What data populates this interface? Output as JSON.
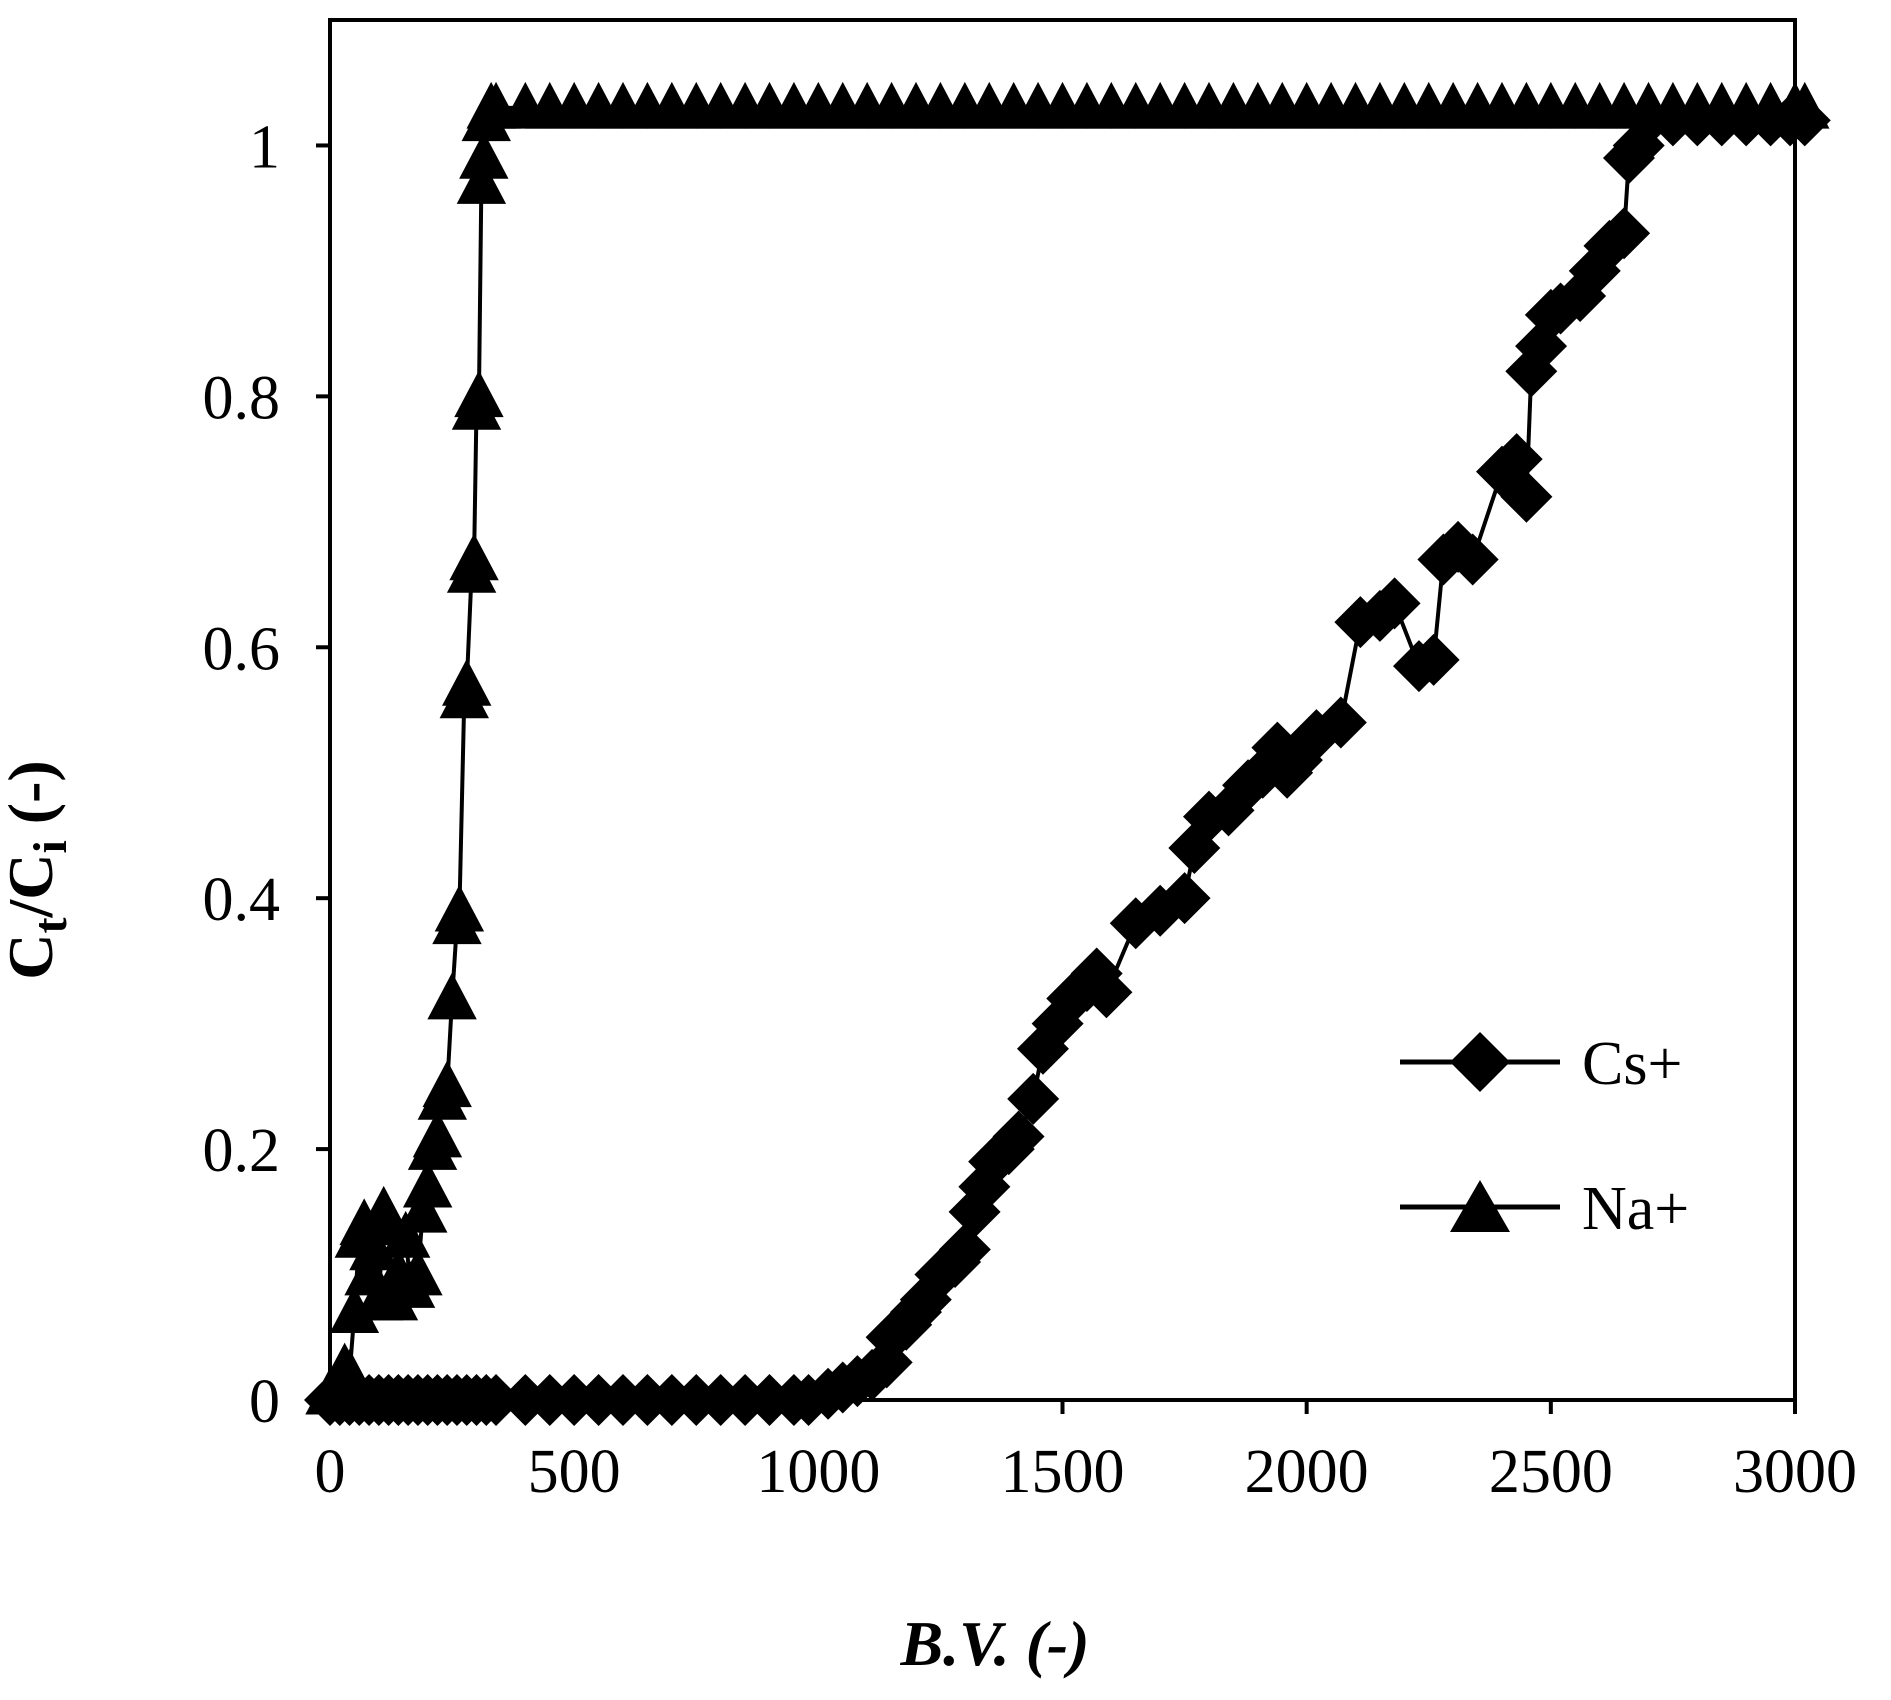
{
  "chart_data": {
    "type": "line",
    "title": "",
    "xlabel": "B.V. (-)",
    "ylabel": {
      "main": "C",
      "sub1": "t",
      "mid": "/C",
      "sub2": "i",
      "tail": " (-)"
    },
    "xlim": [
      0,
      3000
    ],
    "ylim": [
      0,
      1.1
    ],
    "x_ticks": [
      "0",
      "500",
      "1000",
      "1500",
      "2000",
      "2500",
      "3000"
    ],
    "y_ticks": [
      "0",
      "0.2",
      "0.4",
      "0.6",
      "0.8",
      "1"
    ],
    "grid": false,
    "legend_position": "bottom-right",
    "colors": {
      "series": "#000000",
      "background": "#ffffff"
    },
    "series": [
      {
        "name": "Cs+",
        "marker": "diamond",
        "points": [
          [
            0,
            0
          ],
          [
            20,
            0
          ],
          [
            40,
            0
          ],
          [
            60,
            0
          ],
          [
            80,
            0
          ],
          [
            100,
            0
          ],
          [
            120,
            0
          ],
          [
            140,
            0
          ],
          [
            160,
            0
          ],
          [
            180,
            0
          ],
          [
            200,
            0
          ],
          [
            220,
            0
          ],
          [
            240,
            0
          ],
          [
            260,
            0
          ],
          [
            280,
            0
          ],
          [
            300,
            0
          ],
          [
            320,
            0
          ],
          [
            340,
            0
          ],
          [
            400,
            0
          ],
          [
            450,
            0
          ],
          [
            500,
            0
          ],
          [
            550,
            0
          ],
          [
            600,
            0
          ],
          [
            650,
            0
          ],
          [
            700,
            0
          ],
          [
            750,
            0
          ],
          [
            800,
            0
          ],
          [
            850,
            0
          ],
          [
            900,
            0
          ],
          [
            950,
            0
          ],
          [
            980,
            0
          ],
          [
            1020,
            0.005
          ],
          [
            1050,
            0.01
          ],
          [
            1080,
            0.015
          ],
          [
            1110,
            0.02
          ],
          [
            1140,
            0.03
          ],
          [
            1150,
            0.05
          ],
          [
            1180,
            0.06
          ],
          [
            1200,
            0.07
          ],
          [
            1220,
            0.08
          ],
          [
            1250,
            0.1
          ],
          [
            1280,
            0.11
          ],
          [
            1300,
            0.12
          ],
          [
            1320,
            0.15
          ],
          [
            1340,
            0.17
          ],
          [
            1360,
            0.19
          ],
          [
            1390,
            0.2
          ],
          [
            1410,
            0.21
          ],
          [
            1440,
            0.24
          ],
          [
            1460,
            0.28
          ],
          [
            1490,
            0.3
          ],
          [
            1520,
            0.32
          ],
          [
            1550,
            0.33
          ],
          [
            1570,
            0.34
          ],
          [
            1590,
            0.325
          ],
          [
            1650,
            0.38
          ],
          [
            1700,
            0.39
          ],
          [
            1750,
            0.4
          ],
          [
            1770,
            0.44
          ],
          [
            1800,
            0.465
          ],
          [
            1840,
            0.47
          ],
          [
            1880,
            0.49
          ],
          [
            1910,
            0.5
          ],
          [
            1940,
            0.52
          ],
          [
            1960,
            0.5
          ],
          [
            1980,
            0.51
          ],
          [
            2020,
            0.53
          ],
          [
            2070,
            0.54
          ],
          [
            2110,
            0.62
          ],
          [
            2150,
            0.625
          ],
          [
            2180,
            0.635
          ],
          [
            2230,
            0.585
          ],
          [
            2260,
            0.59
          ],
          [
            2280,
            0.67
          ],
          [
            2310,
            0.68
          ],
          [
            2340,
            0.67
          ],
          [
            2400,
            0.74
          ],
          [
            2430,
            0.75
          ],
          [
            2450,
            0.72
          ],
          [
            2460,
            0.82
          ],
          [
            2480,
            0.84
          ],
          [
            2500,
            0.865
          ],
          [
            2520,
            0.87
          ],
          [
            2560,
            0.88
          ],
          [
            2590,
            0.9
          ],
          [
            2620,
            0.92
          ],
          [
            2650,
            0.93
          ],
          [
            2660,
            0.99
          ],
          [
            2680,
            1.0
          ],
          [
            2700,
            1.02
          ],
          [
            2750,
            1.02
          ],
          [
            2800,
            1.02
          ],
          [
            2850,
            1.02
          ],
          [
            2900,
            1.02
          ],
          [
            2950,
            1.02
          ],
          [
            2990,
            1.02
          ],
          [
            3020,
            1.02
          ]
        ]
      },
      {
        "name": "Na+",
        "marker": "triangle",
        "points": [
          [
            0,
            0.005
          ],
          [
            10,
            0.01
          ],
          [
            20,
            0.015
          ],
          [
            30,
            0.025
          ],
          [
            40,
            0.02
          ],
          [
            50,
            0.07
          ],
          [
            60,
            0.13
          ],
          [
            70,
            0.14
          ],
          [
            80,
            0.1
          ],
          [
            90,
            0.12
          ],
          [
            100,
            0.08
          ],
          [
            110,
            0.15
          ],
          [
            120,
            0.14
          ],
          [
            130,
            0.08
          ],
          [
            140,
            0.1
          ],
          [
            155,
            0.13
          ],
          [
            165,
            0.09
          ],
          [
            180,
            0.1
          ],
          [
            190,
            0.15
          ],
          [
            200,
            0.17
          ],
          [
            210,
            0.2
          ],
          [
            220,
            0.21
          ],
          [
            230,
            0.24
          ],
          [
            240,
            0.25
          ],
          [
            250,
            0.32
          ],
          [
            260,
            0.38
          ],
          [
            265,
            0.39
          ],
          [
            275,
            0.56
          ],
          [
            280,
            0.57
          ],
          [
            290,
            0.66
          ],
          [
            295,
            0.67
          ],
          [
            300,
            0.79
          ],
          [
            305,
            0.8
          ],
          [
            310,
            0.97
          ],
          [
            315,
            0.99
          ],
          [
            320,
            1.02
          ],
          [
            330,
            1.03
          ],
          [
            340,
            1.03
          ],
          [
            400,
            1.03
          ],
          [
            450,
            1.03
          ],
          [
            500,
            1.03
          ],
          [
            550,
            1.03
          ],
          [
            600,
            1.03
          ],
          [
            650,
            1.03
          ],
          [
            700,
            1.03
          ],
          [
            750,
            1.03
          ],
          [
            800,
            1.03
          ],
          [
            850,
            1.03
          ],
          [
            900,
            1.03
          ],
          [
            950,
            1.03
          ],
          [
            1000,
            1.03
          ],
          [
            1050,
            1.03
          ],
          [
            1100,
            1.03
          ],
          [
            1150,
            1.03
          ],
          [
            1200,
            1.03
          ],
          [
            1250,
            1.03
          ],
          [
            1300,
            1.03
          ],
          [
            1350,
            1.03
          ],
          [
            1400,
            1.03
          ],
          [
            1450,
            1.03
          ],
          [
            1500,
            1.03
          ],
          [
            1550,
            1.03
          ],
          [
            1600,
            1.03
          ],
          [
            1650,
            1.03
          ],
          [
            1700,
            1.03
          ],
          [
            1750,
            1.03
          ],
          [
            1800,
            1.03
          ],
          [
            1850,
            1.03
          ],
          [
            1900,
            1.03
          ],
          [
            1950,
            1.03
          ],
          [
            2000,
            1.03
          ],
          [
            2050,
            1.03
          ],
          [
            2100,
            1.03
          ],
          [
            2150,
            1.03
          ],
          [
            2200,
            1.03
          ],
          [
            2250,
            1.03
          ],
          [
            2300,
            1.03
          ],
          [
            2350,
            1.03
          ],
          [
            2400,
            1.03
          ],
          [
            2450,
            1.03
          ],
          [
            2500,
            1.03
          ],
          [
            2550,
            1.03
          ],
          [
            2600,
            1.03
          ],
          [
            2650,
            1.03
          ],
          [
            2700,
            1.03
          ],
          [
            2750,
            1.03
          ],
          [
            2800,
            1.03
          ],
          [
            2850,
            1.03
          ],
          [
            2900,
            1.03
          ],
          [
            2950,
            1.03
          ],
          [
            3000,
            1.03
          ],
          [
            3020,
            1.03
          ]
        ]
      }
    ]
  }
}
